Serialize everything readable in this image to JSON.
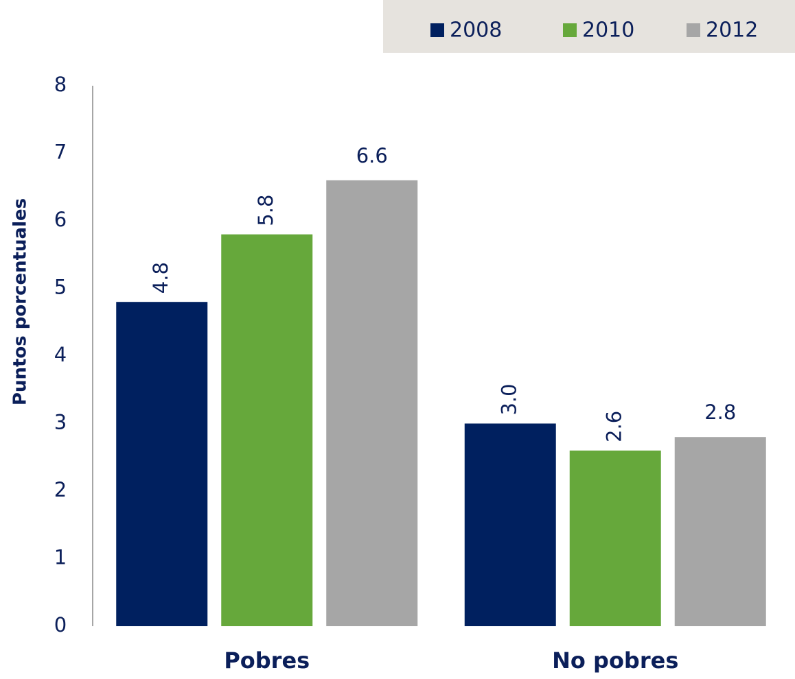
{
  "chart_data": {
    "type": "bar",
    "y_label": "Puntos porcentuales",
    "categories": [
      "Pobres",
      "No pobres"
    ],
    "series": [
      {
        "name": "2008",
        "color": "#00205f",
        "values": [
          4.8,
          3.0
        ],
        "value_labels": [
          "4.8",
          "3.0"
        ]
      },
      {
        "name": "2010",
        "color": "#66a83b",
        "values": [
          5.8,
          2.6
        ],
        "value_labels": [
          "5.8",
          "2.6"
        ]
      },
      {
        "name": "2012",
        "color": "#a6a6a6",
        "values": [
          6.6,
          2.8
        ],
        "value_labels": [
          "6.6",
          "2.8"
        ]
      }
    ],
    "ylim": [
      0,
      8
    ],
    "yticks": [
      0,
      1,
      2,
      3,
      4,
      5,
      6,
      7,
      8
    ],
    "grid": false,
    "legend": "top-right"
  }
}
